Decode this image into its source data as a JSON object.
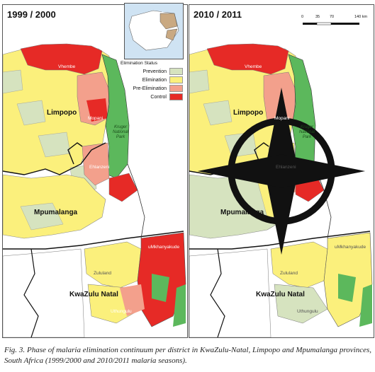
{
  "panels": [
    {
      "title": "1999 / 2000",
      "labels": {
        "limpopo": "Limpopo",
        "mpumalanga": "Mpumalanga",
        "kwazulu": "KwaZulu Natal",
        "vhembe": "Vhembe",
        "mopani": "Mopani",
        "ehlanzeni": "Ehlanzeni",
        "umkhanyakude": "uMkhanyakude",
        "zululand": "Zululand",
        "uthungulu": "Uthungulu",
        "kruger": "Kruger National Park"
      },
      "status": {
        "vhembe": "Control",
        "mopani": "Control",
        "ehlanzeni": "Pre-Elimination",
        "southern_tip": "Control",
        "umkhanyakude": "Control",
        "zululand": "Elimination",
        "uthungulu": "Elimination"
      }
    },
    {
      "title": "2010 / 2011",
      "labels": {
        "limpopo": "Limpopo",
        "mpumalanga": "Mpumalanga",
        "kwazulu": "KwaZulu Natal",
        "vhembe": "Vhembe",
        "mopani": "Mopani",
        "ehlanzeni": "Ehlanzeni",
        "umkhanyakude": "uMkhanyakude",
        "zululand": "Zululand",
        "uthungulu": "Uthungulu",
        "kruger": "Kruger National Park"
      },
      "status": {
        "vhembe": "Control",
        "mopani": "Pre-Elimination",
        "ehlanzeni": "Elimination",
        "southern_tip": "Control",
        "umkhanyakude": "Elimination",
        "zululand": "Elimination",
        "uthungulu": "Elimination"
      }
    }
  ],
  "legend": {
    "title": "Elimination Status",
    "items": [
      {
        "label": "Prevention",
        "color": "#d6e3bf"
      },
      {
        "label": "Elimination",
        "color": "#fbf07c"
      },
      {
        "label": "Pre-Elimination",
        "color": "#f3a08c"
      },
      {
        "label": "Control",
        "color": "#e62a26"
      }
    ]
  },
  "scale": {
    "ticks": [
      "0",
      "35",
      "70",
      "140 km"
    ]
  },
  "caption": "Fig. 3. Phase of malaria elimination continuum per district in KwaZulu-Natal, Limpopo and Mpumalanga provinces, South Africa (1999/2000 and 2010/2011 malaria seasons).",
  "colors": {
    "park_green": "#5cb85c",
    "prevention": "#d6e3bf",
    "elimination": "#fbf07c",
    "pre_elimination": "#f3a08c",
    "control": "#e62a26"
  }
}
